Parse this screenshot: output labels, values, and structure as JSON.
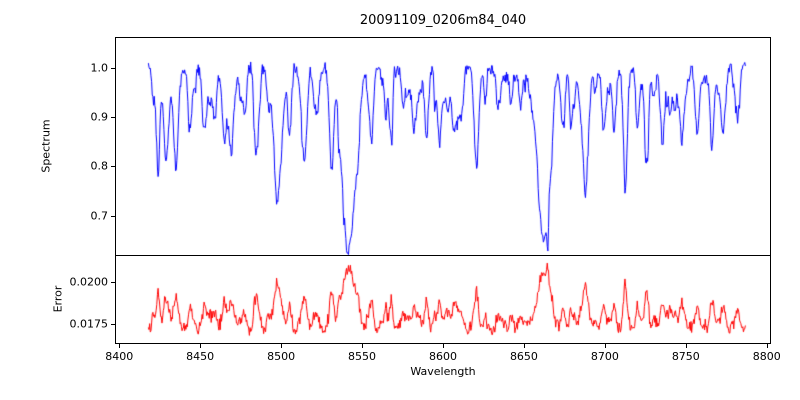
{
  "axes": {
    "xlabel": "Wavelength",
    "xticks": [
      8400,
      8450,
      8500,
      8550,
      8600,
      8650,
      8700,
      8750,
      8800
    ]
  },
  "chart_data": [
    {
      "type": "line",
      "panel": "spectrum",
      "title": "20091109_0206m84_040",
      "ylabel": "Spectrum",
      "color": "#0000ff",
      "xlim": [
        8398,
        8802
      ],
      "x_range": [
        8418,
        8787
      ],
      "ylim": [
        0.62,
        1.06
      ],
      "ytick_values": [
        1.0,
        0.9,
        0.8,
        0.7
      ],
      "ytick_labels": [
        "1.0",
        "0.9",
        "0.8",
        "0.7"
      ],
      "baseline": 1.0,
      "noise_amplitude": 0.018,
      "grid": false,
      "legend": "none",
      "absorption_lines": [
        {
          "center": 8424,
          "depth": 0.13,
          "width": 1.3
        },
        {
          "center": 8429,
          "depth": 0.17,
          "width": 1.5
        },
        {
          "center": 8435,
          "depth": 0.16,
          "width": 1.6
        },
        {
          "center": 8444,
          "depth": 0.09,
          "width": 1.1
        },
        {
          "center": 8452,
          "depth": 0.08,
          "width": 1.1
        },
        {
          "center": 8459,
          "depth": 0.11,
          "width": 1.2
        },
        {
          "center": 8465,
          "depth": 0.09,
          "width": 1.1
        },
        {
          "center": 8469,
          "depth": 0.16,
          "width": 1.6
        },
        {
          "center": 8477,
          "depth": 0.09,
          "width": 1.1
        },
        {
          "center": 8485,
          "depth": 0.08,
          "width": 1.1
        },
        {
          "center": 8492,
          "depth": 0.07,
          "width": 1.0
        },
        {
          "center": 8498,
          "depth": 0.24,
          "width": 2.6
        },
        {
          "center": 8505,
          "depth": 0.07,
          "width": 1.0
        },
        {
          "center": 8514,
          "depth": 0.16,
          "width": 1.7
        },
        {
          "center": 8522,
          "depth": 0.09,
          "width": 1.1
        },
        {
          "center": 8531,
          "depth": 0.07,
          "width": 1.0
        },
        {
          "center": 8542,
          "depth": 0.36,
          "width": 4.0
        },
        {
          "center": 8556,
          "depth": 0.08,
          "width": 1.1
        },
        {
          "center": 8567,
          "depth": 0.09,
          "width": 1.1
        },
        {
          "center": 8575,
          "depth": 0.07,
          "width": 1.0
        },
        {
          "center": 8582,
          "depth": 0.11,
          "width": 1.3
        },
        {
          "center": 8590,
          "depth": 0.07,
          "width": 1.0
        },
        {
          "center": 8598,
          "depth": 0.1,
          "width": 1.2
        },
        {
          "center": 8611,
          "depth": 0.1,
          "width": 1.2
        },
        {
          "center": 8621,
          "depth": 0.12,
          "width": 1.3
        },
        {
          "center": 8634,
          "depth": 0.08,
          "width": 1.1
        },
        {
          "center": 8642,
          "depth": 0.07,
          "width": 1.0
        },
        {
          "center": 8648,
          "depth": 0.08,
          "width": 1.0
        },
        {
          "center": 8662,
          "depth": 0.35,
          "width": 3.6
        },
        {
          "center": 8674,
          "depth": 0.11,
          "width": 1.2
        },
        {
          "center": 8679,
          "depth": 0.08,
          "width": 1.0
        },
        {
          "center": 8688,
          "depth": 0.23,
          "width": 1.9
        },
        {
          "center": 8699,
          "depth": 0.1,
          "width": 1.1
        },
        {
          "center": 8706,
          "depth": 0.07,
          "width": 1.0
        },
        {
          "center": 8713,
          "depth": 0.12,
          "width": 1.3
        },
        {
          "center": 8720,
          "depth": 0.08,
          "width": 1.0
        },
        {
          "center": 8726,
          "depth": 0.09,
          "width": 1.1
        },
        {
          "center": 8736,
          "depth": 0.11,
          "width": 1.2
        },
        {
          "center": 8747,
          "depth": 0.1,
          "width": 1.1
        },
        {
          "center": 8757,
          "depth": 0.13,
          "width": 1.3
        },
        {
          "center": 8766,
          "depth": 0.1,
          "width": 1.1
        },
        {
          "center": 8773,
          "depth": 0.14,
          "width": 1.4
        },
        {
          "center": 8782,
          "depth": 0.11,
          "width": 1.2
        }
      ]
    },
    {
      "type": "line",
      "panel": "error",
      "ylabel": "Error",
      "color": "#ff0000",
      "ylim": [
        0.0164,
        0.0215
      ],
      "ytick_values": [
        0.02,
        0.0175
      ],
      "ytick_labels": [
        "0.0200",
        "0.0175"
      ],
      "baseline": 0.0172,
      "noise_amplitude": 0.00045,
      "peak_scale": 0.0095,
      "grid": false,
      "legend": "none"
    }
  ]
}
